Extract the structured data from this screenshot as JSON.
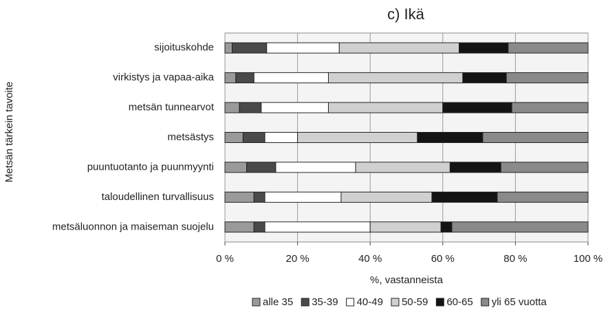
{
  "chart_data": {
    "type": "stacked-barh",
    "title": "c) Ikä",
    "y_label": "Metsän tärkein tavoite",
    "x_label": "%, vastanneista",
    "categories": [
      "sijoituskohde",
      "virkistys ja vapaa-aika",
      "metsän tunnearvot",
      "metsästys",
      "puuntuotanto ja puunmyynti",
      "taloudellinen turvallisuus",
      "metsäluonnon ja maiseman suojelu"
    ],
    "series": [
      {
        "name": "alle 35",
        "color": "#9a9a9a",
        "values": [
          2,
          3,
          4,
          5,
          6,
          8,
          8
        ]
      },
      {
        "name": "35-39",
        "color": "#4a4a4a",
        "values": [
          9.5,
          5,
          6,
          6,
          8,
          3,
          3
        ]
      },
      {
        "name": "40-49",
        "color": "#ffffff",
        "values": [
          20,
          20.5,
          18.5,
          9,
          22,
          21,
          29
        ]
      },
      {
        "name": "50-59",
        "color": "#d0d0d0",
        "values": [
          33,
          37,
          31.5,
          33,
          26,
          25,
          19.5
        ]
      },
      {
        "name": "60-65",
        "color": "#141414",
        "values": [
          13.5,
          12,
          19,
          18,
          14,
          18,
          3
        ]
      },
      {
        "name": "yli 65 vuotta",
        "color": "#8a8a8a",
        "values": [
          22,
          22.5,
          21,
          29,
          24,
          25,
          37.5
        ]
      }
    ],
    "xlim": [
      0,
      100
    ],
    "xticks": [
      {
        "value": 0,
        "label": "0 %"
      },
      {
        "value": 20,
        "label": "20 %"
      },
      {
        "value": 40,
        "label": "40 %"
      },
      {
        "value": 60,
        "label": "60 %"
      },
      {
        "value": 80,
        "label": "80 %"
      },
      {
        "value": 100,
        "label": "100 %"
      }
    ],
    "grid": true,
    "legend": "bottom"
  }
}
